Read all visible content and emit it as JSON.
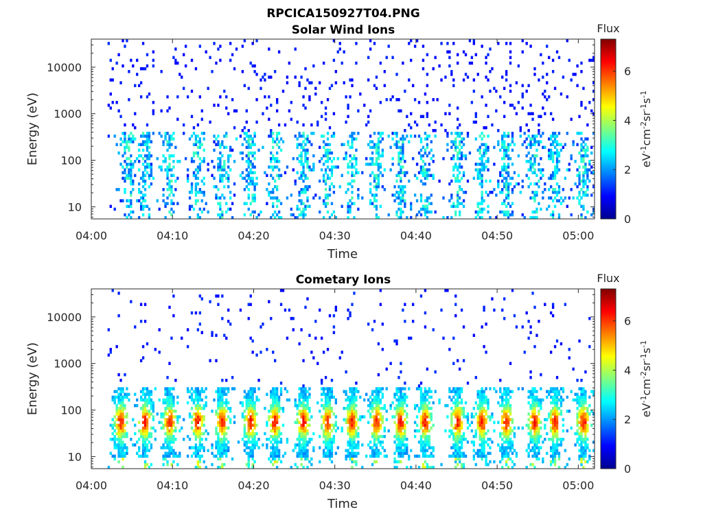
{
  "figure": {
    "title": "RPCICA150927T04.PNG"
  },
  "chart_data": [
    {
      "type": "heatmap",
      "title": "Solar Wind Ions",
      "xlabel": "Time",
      "ylabel": "Energy (eV)",
      "x_ticks": [
        "04:00",
        "04:10",
        "04:20",
        "04:30",
        "04:40",
        "04:50",
        "05:00"
      ],
      "x_range": [
        "04:00",
        "05:02"
      ],
      "y_scale": "log",
      "y_ticks": [
        "10",
        "100",
        "1000",
        "10000"
      ],
      "y_range": [
        5.5,
        40000
      ],
      "colorbar": {
        "title": "Flux",
        "label": "eV-1cm-2sr-1s-1",
        "ticks": [
          "0",
          "2",
          "4",
          "6"
        ],
        "range": [
          0,
          7.3
        ],
        "colormap": "jet"
      },
      "seed": 7,
      "data_x_range": [
        "04:02",
        "05:02"
      ],
      "bursts_minutes": [
        4.5,
        6.5,
        9.5,
        13,
        16,
        19.5,
        22.5,
        26,
        29,
        32,
        35,
        38,
        41,
        45,
        48,
        51,
        54.5,
        57,
        60.5
      ],
      "low_intensity": true
    },
    {
      "type": "heatmap",
      "title": "Cometary Ions",
      "xlabel": "Time",
      "ylabel": "Energy (eV)",
      "x_ticks": [
        "04:00",
        "04:10",
        "04:20",
        "04:30",
        "04:40",
        "04:50",
        "05:00"
      ],
      "x_range": [
        "04:00",
        "05:02"
      ],
      "y_scale": "log",
      "y_ticks": [
        "10",
        "100",
        "1000",
        "10000"
      ],
      "y_range": [
        5.5,
        40000
      ],
      "colorbar": {
        "title": "Flux",
        "label": "eV-1cm-2sr-1s-1",
        "ticks": [
          "0",
          "2",
          "4",
          "6"
        ],
        "range": [
          0,
          7.3
        ],
        "colormap": "jet"
      },
      "seed": 19,
      "data_x_range": [
        "04:02",
        "05:02"
      ],
      "bursts_minutes": [
        3.5,
        6.5,
        9.5,
        13,
        16,
        19.5,
        22.5,
        26,
        29,
        32,
        35,
        38,
        41,
        45,
        48,
        51,
        54.5,
        57,
        60.5
      ],
      "low_intensity": false
    }
  ]
}
